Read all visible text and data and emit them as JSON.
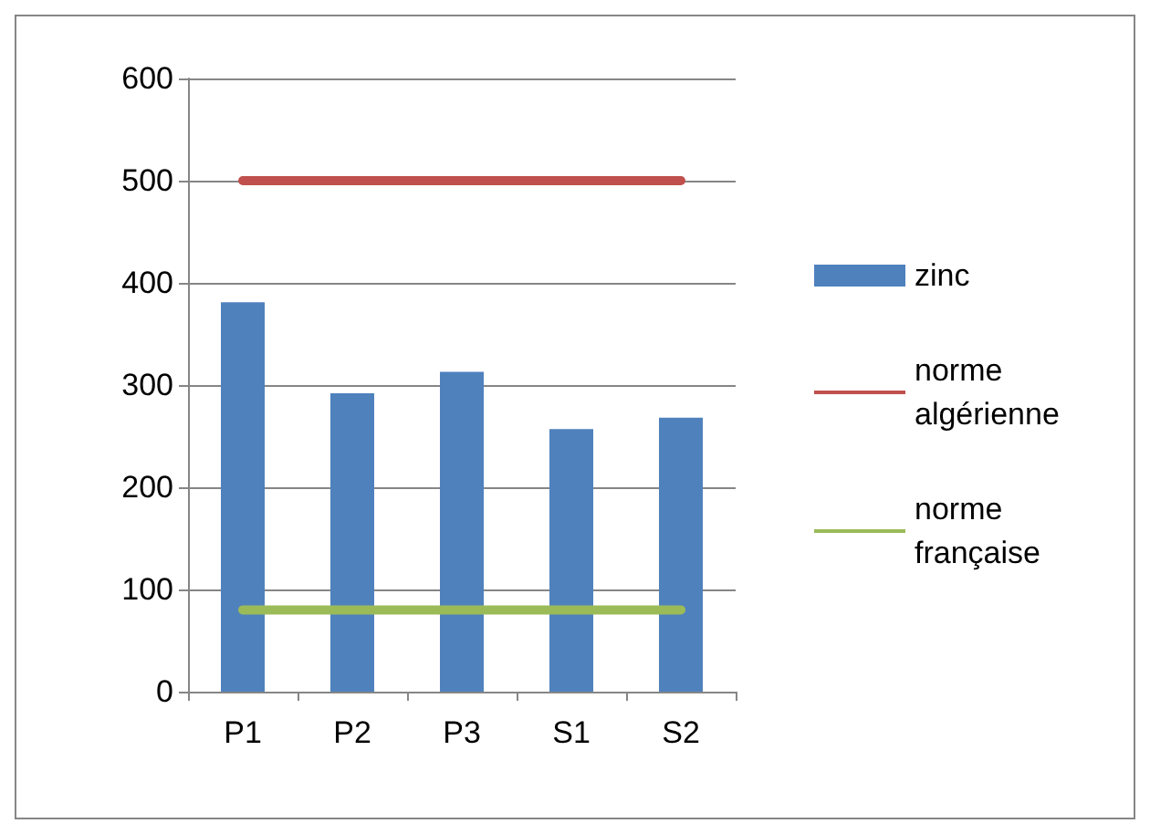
{
  "chart_data": {
    "type": "bar",
    "categories": [
      "P1",
      "P2",
      "P3",
      "S1",
      "S2"
    ],
    "series": [
      {
        "name": "zinc",
        "color": "#4f81bd",
        "values": [
          381,
          292,
          313,
          257,
          268
        ]
      },
      {
        "name": "norme algérienne",
        "type": "line",
        "color": "#c0504d",
        "values": [
          500,
          500,
          500,
          500,
          500
        ]
      },
      {
        "name": "norme française",
        "type": "line",
        "color": "#9bbb59",
        "values": [
          80,
          80,
          80,
          80,
          80
        ]
      }
    ],
    "ylim": [
      0,
      600
    ],
    "yticks": [
      0,
      100,
      200,
      300,
      400,
      500,
      600
    ],
    "grid": "y",
    "legend": "right",
    "marker": "none"
  }
}
